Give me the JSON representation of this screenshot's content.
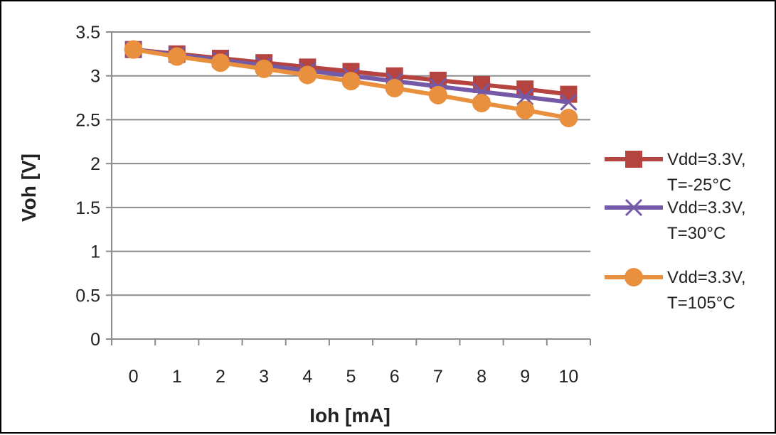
{
  "chart_data": {
    "type": "line",
    "title": "",
    "xlabel": "Ioh [mA]",
    "ylabel": "Voh [V]",
    "x": [
      0,
      1,
      2,
      3,
      4,
      5,
      6,
      7,
      8,
      9,
      10
    ],
    "x_tick_labels": [
      "0",
      "1",
      "2",
      "3",
      "4",
      "5",
      "6",
      "7",
      "8",
      "9",
      "10"
    ],
    "y_tick_labels": [
      "0",
      "0.5",
      "1",
      "1.5",
      "2",
      "2.5",
      "3",
      "3.5"
    ],
    "ylim": [
      0,
      3.5
    ],
    "grid": "horizontal",
    "legend_position": "right",
    "series": [
      {
        "name_line1": "Vdd=3.3V,",
        "name_line2": "T=-25°C",
        "color": "#b5433f",
        "marker": "square",
        "values": [
          3.3,
          3.25,
          3.2,
          3.15,
          3.1,
          3.05,
          3.0,
          2.95,
          2.9,
          2.85,
          2.79
        ]
      },
      {
        "name_line1": "Vdd=3.3V,",
        "name_line2": "T=30°C",
        "color": "#7359a6",
        "marker": "x",
        "values": [
          3.3,
          3.24,
          3.18,
          3.12,
          3.06,
          3.0,
          2.94,
          2.88,
          2.82,
          2.76,
          2.7
        ]
      },
      {
        "name_line1": "Vdd=3.3V,",
        "name_line2": "T=105°C",
        "color": "#e9903f",
        "marker": "circle",
        "values": [
          3.3,
          3.22,
          3.15,
          3.08,
          3.01,
          2.94,
          2.86,
          2.78,
          2.69,
          2.61,
          2.52
        ]
      }
    ]
  }
}
